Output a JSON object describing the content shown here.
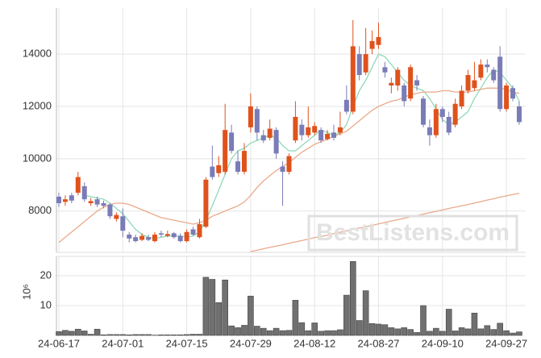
{
  "chart_data": [
    {
      "type": "candlestick",
      "open": [
        8550,
        8350,
        8600,
        8700,
        8950,
        8300,
        8450,
        8300,
        8250,
        7700,
        7800,
        7100,
        7000,
        6900,
        7000,
        6850,
        7150,
        7050,
        7150,
        7050,
        6850,
        7300,
        7000,
        7400,
        9700,
        9450,
        9500,
        11000,
        9900,
        9500,
        11200,
        11900,
        10900,
        10800,
        11100,
        9700,
        9500,
        10700,
        11300,
        10900,
        11000,
        11100,
        10750,
        11000,
        11000,
        12250,
        11800,
        14000,
        13300,
        14200,
        14350,
        13500,
        12800,
        12800,
        12800,
        12300,
        13000,
        12300,
        11200,
        10900,
        11900,
        11600,
        11300,
        12000,
        12600,
        12700,
        13100,
        13600,
        13400,
        13900,
        11900,
        12700,
        12000
      ],
      "high": [
        8700,
        8600,
        8700,
        9500,
        9100,
        8500,
        8550,
        8400,
        8300,
        7950,
        8100,
        7200,
        7100,
        7150,
        7100,
        7200,
        7250,
        7250,
        7200,
        7150,
        7300,
        7400,
        7700,
        9300,
        10500,
        10100,
        12100,
        11300,
        10300,
        10600,
        12500,
        12000,
        11100,
        11500,
        11200,
        9900,
        10200,
        12200,
        11500,
        12000,
        11400,
        11200,
        11100,
        11300,
        11800,
        12800,
        15300,
        14300,
        15000,
        14900,
        15200,
        13700,
        13100,
        13500,
        12900,
        13600,
        13200,
        12400,
        11500,
        12100,
        12000,
        11800,
        12300,
        12800,
        13400,
        13700,
        13800,
        13800,
        13500,
        14300,
        12900,
        12800,
        12200
      ],
      "low": [
        8150,
        8200,
        8300,
        8600,
        8350,
        8200,
        8150,
        8100,
        7700,
        7600,
        7000,
        6800,
        6800,
        6850,
        6850,
        6800,
        7000,
        7000,
        6950,
        6800,
        6800,
        7050,
        6950,
        7350,
        9200,
        9300,
        9400,
        10200,
        9400,
        9400,
        11000,
        10700,
        10600,
        10700,
        10000,
        8200,
        9400,
        10600,
        10700,
        10800,
        10900,
        10600,
        10700,
        10700,
        10900,
        11700,
        11700,
        13000,
        13200,
        14000,
        14200,
        13100,
        12500,
        12600,
        12000,
        12200,
        12600,
        11200,
        10500,
        10800,
        11400,
        10900,
        11200,
        11900,
        12500,
        12600,
        13000,
        13300,
        12900,
        11800,
        11800,
        12200,
        11300
      ],
      "close": [
        8300,
        8450,
        8400,
        9300,
        8450,
        8380,
        8250,
        8200,
        7800,
        7850,
        7250,
        6950,
        6850,
        7050,
        6900,
        7100,
        7100,
        7120,
        7000,
        6850,
        7200,
        7100,
        7500,
        9200,
        9300,
        9750,
        11100,
        10300,
        9500,
        10300,
        12000,
        11000,
        10700,
        11150,
        10200,
        9500,
        10100,
        11600,
        10900,
        11200,
        11250,
        10700,
        10950,
        10800,
        11200,
        11800,
        14300,
        13200,
        14000,
        14500,
        14650,
        13300,
        12900,
        13400,
        12200,
        13500,
        12800,
        11300,
        10900,
        11900,
        11600,
        11000,
        12100,
        12600,
        13200,
        13000,
        13600,
        13500,
        13000,
        11900,
        12800,
        12300,
        11400
      ],
      "up_color": "#e0521c",
      "down_color": "#7a7cb8",
      "series": [
        {
          "color": "#8fd9b8",
          "values": [
            null,
            null,
            null,
            null,
            8600,
            8550,
            8500,
            8450,
            8300,
            8100,
            7900,
            7600,
            7300,
            7100,
            7000,
            6950,
            7000,
            7050,
            7050,
            7050,
            7000,
            7050,
            7200,
            7650,
            8200,
            8800,
            9400,
            10000,
            10300,
            10400,
            10600,
            10700,
            10800,
            10900,
            10800,
            10500,
            10300,
            10300,
            10500,
            10700,
            10900,
            11100,
            11000,
            10900,
            11000,
            11300,
            12000,
            12600,
            13000,
            13500,
            14000,
            13900,
            13600,
            13300,
            13000,
            12800,
            12700,
            12600,
            12300,
            11900,
            11500,
            11300,
            11400,
            11600,
            11800,
            12300,
            12700,
            13100,
            13400,
            13300,
            13000,
            12700,
            12200
          ]
        },
        {
          "color": "#eaa98a",
          "values": [
            6800,
            7000,
            7200,
            7400,
            7600,
            7800,
            8000,
            8150,
            8250,
            8300,
            8300,
            8250,
            8150,
            8050,
            7950,
            7850,
            7750,
            7700,
            7650,
            7600,
            7550,
            7500,
            7550,
            7650,
            7800,
            7900,
            8000,
            8100,
            8200,
            8350,
            8600,
            8900,
            9150,
            9350,
            9550,
            9700,
            9850,
            10050,
            10250,
            10400,
            10550,
            10650,
            10750,
            10850,
            10950,
            11050,
            11250,
            11450,
            11650,
            11850,
            12000,
            12100,
            12200,
            12250,
            12350,
            12450,
            12500,
            12550,
            12550,
            12550,
            12600,
            12600,
            12550,
            12550,
            12550,
            12600,
            12650,
            12700,
            12700,
            12700,
            12650,
            12550,
            12500
          ]
        },
        {
          "color": "#eaa98a",
          "values": [
            null,
            null,
            null,
            null,
            null,
            null,
            null,
            null,
            null,
            null,
            null,
            null,
            null,
            null,
            null,
            null,
            null,
            null,
            null,
            null,
            null,
            null,
            null,
            null,
            null,
            null,
            null,
            null,
            null,
            null,
            6450,
            6500,
            6560,
            6610,
            6660,
            6710,
            6770,
            6820,
            6870,
            6930,
            6980,
            7030,
            7080,
            7140,
            7190,
            7240,
            7300,
            7350,
            7400,
            7450,
            7510,
            7560,
            7620,
            7670,
            7720,
            7780,
            7830,
            7880,
            7940,
            7990,
            8040,
            8100,
            8150,
            8200,
            8250,
            8310,
            8360,
            8420,
            8470,
            8530,
            8580,
            8630,
            8680
          ]
        }
      ],
      "ylim": [
        6420,
        15760
      ],
      "yticks": [
        8000,
        10000,
        12000,
        14000
      ],
      "grid": true,
      "watermark": "BestListens.com"
    },
    {
      "type": "bar",
      "categories": [
        "24-06-17",
        null,
        null,
        null,
        null,
        null,
        null,
        null,
        null,
        null,
        "24-07-01",
        null,
        null,
        null,
        null,
        null,
        null,
        null,
        null,
        null,
        "24-07-15",
        null,
        null,
        null,
        null,
        null,
        null,
        null,
        null,
        null,
        "24-07-29",
        null,
        null,
        null,
        null,
        null,
        null,
        null,
        null,
        null,
        "24-08-12",
        null,
        null,
        null,
        null,
        null,
        null,
        null,
        null,
        null,
        "24-08-27",
        null,
        null,
        null,
        null,
        null,
        null,
        null,
        null,
        null,
        "24-09-10",
        null,
        null,
        null,
        null,
        null,
        null,
        null,
        null,
        null,
        "24-09-27",
        null,
        null
      ],
      "values": [
        1.3,
        1.7,
        1.4,
        2.1,
        1.5,
        0.4,
        2.1,
        0.2,
        0.3,
        0.3,
        0.3,
        0.2,
        0.3,
        0.3,
        0.3,
        0.1,
        0.2,
        0.2,
        0.2,
        0.2,
        0.3,
        0.4,
        0.4,
        19.5,
        18.8,
        11,
        18.6,
        3.2,
        2.6,
        3.4,
        13.2,
        3.1,
        2.4,
        1.6,
        2.4,
        1.6,
        1.7,
        11.8,
        4.3,
        1.6,
        4.2,
        1.4,
        1.6,
        1.6,
        1.9,
        13.5,
        24.8,
        5,
        15,
        4,
        3.8,
        3.6,
        2.6,
        2.2,
        2.6,
        2,
        1,
        10,
        1.4,
        2.4,
        1.4,
        8.8,
        1.5,
        2.6,
        2.2,
        7.5,
        2.2,
        3.3,
        2,
        4.1,
        1.6,
        0.8,
        1.2
      ],
      "color": "#707070",
      "ylim": [
        0,
        26.5
      ],
      "yticks": [
        10,
        20
      ],
      "ylabel": "10⁶",
      "grid": true
    }
  ]
}
